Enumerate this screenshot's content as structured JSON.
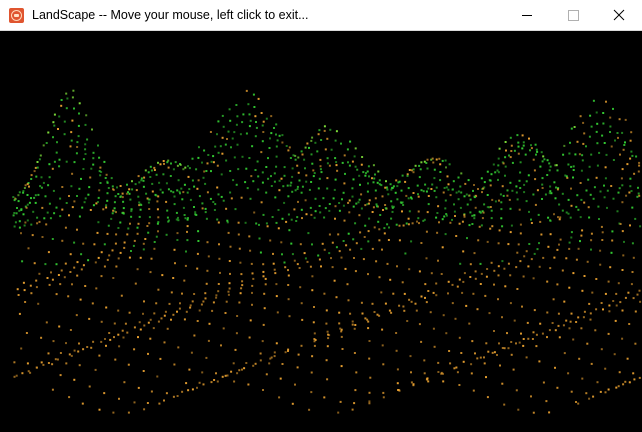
{
  "window": {
    "title": "LandScape -- Move your mouse, left click to exit...",
    "icon": "landscape-app-icon"
  },
  "controls": {
    "minimize_icon": "minimize-icon",
    "maximize_icon": "maximize-icon",
    "close_icon": "close-icon"
  },
  "colors": {
    "background": "#000000",
    "near_dots": "#e8a030",
    "far_dots": "#33cc33",
    "highlight_dots": "#7ee03a"
  }
}
